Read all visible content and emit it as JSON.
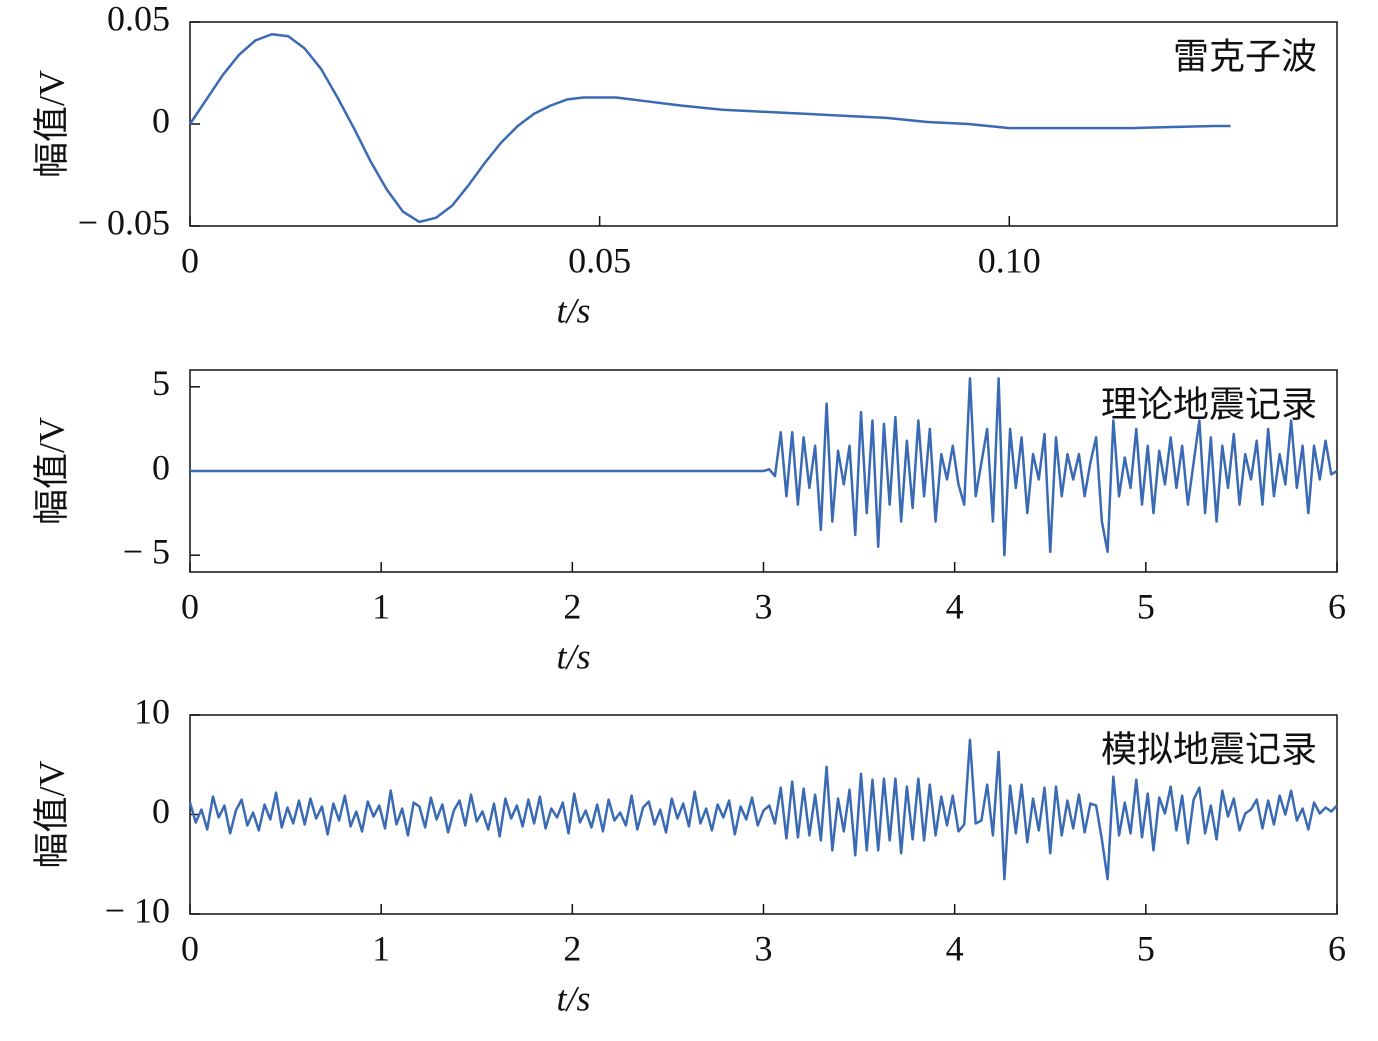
{
  "chart_data": [
    {
      "type": "line",
      "annotation": "雷克子波",
      "xlabel": "t/s",
      "ylabel": "幅值/V",
      "xlim": [
        0,
        0.14
      ],
      "ylim": [
        -0.05,
        0.05
      ],
      "xticks": [
        0,
        0.05,
        {
          "value": 0.1,
          "label": "0.10"
        }
      ],
      "yticks": [
        {
          "value": -0.05,
          "label": "− 0.05"
        },
        0,
        0.05
      ],
      "series": [
        {
          "color": "#3a6ab4",
          "x": [
            0,
            0.002,
            0.004,
            0.006,
            0.008,
            0.01,
            0.012,
            0.014,
            0.016,
            0.018,
            0.02,
            0.022,
            0.024,
            0.026,
            0.028,
            0.03,
            0.032,
            0.034,
            0.036,
            0.038,
            0.04,
            0.042,
            0.044,
            0.046,
            0.048,
            0.05,
            0.052,
            0.054,
            0.056,
            0.058,
            0.06,
            0.065,
            0.07,
            0.075,
            0.08,
            0.085,
            0.09,
            0.095,
            0.1,
            0.105,
            0.11,
            0.115,
            0.12,
            0.125,
            0.127
          ],
          "values": [
            0,
            0.012,
            0.024,
            0.034,
            0.041,
            0.044,
            0.043,
            0.037,
            0.027,
            0.013,
            -0.002,
            -0.018,
            -0.032,
            -0.043,
            -0.048,
            -0.046,
            -0.04,
            -0.03,
            -0.019,
            -0.009,
            -0.001,
            0.005,
            0.009,
            0.012,
            0.013,
            0.013,
            0.013,
            0.012,
            0.011,
            0.01,
            0.009,
            0.007,
            0.006,
            0.005,
            0.004,
            0.003,
            0.001,
            0,
            -0.002,
            -0.002,
            -0.002,
            -0.002,
            -0.0015,
            -0.001,
            -0.001
          ]
        }
      ]
    },
    {
      "type": "line",
      "annotation": "理论地震记录",
      "xlabel": "t/s",
      "ylabel": "幅值/V",
      "xlim": [
        0,
        6
      ],
      "ylim": [
        -6,
        6
      ],
      "xticks": [
        0,
        1,
        2,
        3,
        4,
        5,
        6
      ],
      "yticks": [
        {
          "value": -5,
          "label": "− 5"
        },
        0,
        5
      ],
      "series": [
        {
          "color": "#3a6ab4",
          "x": [
            0,
            3,
            3.03,
            3.06,
            3.09,
            3.12,
            3.15,
            3.18,
            3.21,
            3.24,
            3.27,
            3.3,
            3.33,
            3.36,
            3.39,
            3.42,
            3.45,
            3.48,
            3.51,
            3.54,
            3.57,
            3.6,
            3.63,
            3.66,
            3.69,
            3.72,
            3.75,
            3.78,
            3.81,
            3.84,
            3.87,
            3.9,
            3.93,
            3.96,
            3.99,
            4.02,
            4.05,
            4.08,
            4.11,
            4.14,
            4.17,
            4.2,
            4.23,
            4.26,
            4.29,
            4.32,
            4.35,
            4.38,
            4.41,
            4.44,
            4.47,
            4.5,
            4.53,
            4.56,
            4.59,
            4.62,
            4.65,
            4.68,
            4.71,
            4.74,
            4.77,
            4.8,
            4.83,
            4.86,
            4.89,
            4.92,
            4.95,
            4.98,
            5.01,
            5.04,
            5.07,
            5.1,
            5.13,
            5.16,
            5.19,
            5.22,
            5.25,
            5.28,
            5.31,
            5.34,
            5.37,
            5.4,
            5.43,
            5.46,
            5.49,
            5.52,
            5.55,
            5.58,
            5.61,
            5.64,
            5.67,
            5.7,
            5.73,
            5.76,
            5.79,
            5.82,
            5.85,
            5.88,
            5.91,
            5.94,
            5.97,
            6
          ],
          "values": [
            0,
            0,
            0.1,
            -0.3,
            2.3,
            -1.5,
            2.3,
            -2.0,
            2.0,
            -1.0,
            1.5,
            -3.5,
            4.0,
            -3.0,
            1.2,
            -0.8,
            1.5,
            -3.8,
            3.5,
            -2.5,
            3.0,
            -4.5,
            2.8,
            -2.0,
            3.2,
            -3.0,
            1.8,
            -2.2,
            3.0,
            -1.5,
            2.5,
            -3.0,
            1.0,
            -0.5,
            1.5,
            -0.8,
            -2.0,
            5.5,
            -1.5,
            0.5,
            2.5,
            -3.0,
            5.5,
            -5.0,
            2.5,
            -1.0,
            2.0,
            -2.5,
            1.0,
            -0.5,
            2.2,
            -4.8,
            2.0,
            -1.5,
            1.0,
            -0.5,
            1.0,
            -1.5,
            0.5,
            2.0,
            -3.0,
            -4.8,
            3.0,
            -1.5,
            0.8,
            -1.0,
            2.5,
            -2.0,
            1.5,
            -2.5,
            1.2,
            -0.8,
            2.0,
            -1.0,
            1.5,
            -2.0,
            0.5,
            3.0,
            -2.5,
            2.0,
            -3.0,
            1.5,
            -1.0,
            2.2,
            -2.0,
            1.0,
            -0.5,
            1.8,
            -2.0,
            2.5,
            -1.5,
            1.0,
            -0.8,
            3.0,
            -1.0,
            1.5,
            -2.5,
            1.5,
            -0.5,
            1.8,
            -0.2,
            0
          ]
        }
      ]
    },
    {
      "type": "line",
      "annotation": "模拟地震记录",
      "xlabel": "t/s",
      "ylabel": "幅值/V",
      "xlim": [
        0,
        6
      ],
      "ylim": [
        -10,
        10
      ],
      "xticks": [
        0,
        1,
        2,
        3,
        4,
        5,
        6
      ],
      "yticks": [
        {
          "value": -10,
          "label": "− 10"
        },
        0,
        10
      ],
      "series": [
        {
          "color": "#3a6ab4",
          "x": [
            0,
            0.03,
            0.06,
            0.09,
            0.12,
            0.15,
            0.18,
            0.21,
            0.24,
            0.27,
            0.3,
            0.33,
            0.36,
            0.39,
            0.42,
            0.45,
            0.48,
            0.51,
            0.54,
            0.57,
            0.6,
            0.63,
            0.66,
            0.69,
            0.72,
            0.75,
            0.78,
            0.81,
            0.84,
            0.87,
            0.9,
            0.93,
            0.96,
            0.99,
            1.02,
            1.05,
            1.08,
            1.11,
            1.14,
            1.17,
            1.2,
            1.23,
            1.26,
            1.29,
            1.32,
            1.35,
            1.38,
            1.41,
            1.44,
            1.47,
            1.5,
            1.53,
            1.56,
            1.59,
            1.62,
            1.65,
            1.68,
            1.71,
            1.74,
            1.77,
            1.8,
            1.83,
            1.86,
            1.89,
            1.92,
            1.95,
            1.98,
            2.01,
            2.04,
            2.07,
            2.1,
            2.13,
            2.16,
            2.19,
            2.22,
            2.25,
            2.28,
            2.31,
            2.34,
            2.37,
            2.4,
            2.43,
            2.46,
            2.49,
            2.52,
            2.55,
            2.58,
            2.61,
            2.64,
            2.67,
            2.7,
            2.73,
            2.76,
            2.79,
            2.82,
            2.85,
            2.88,
            2.91,
            2.94,
            2.97,
            3,
            3.03,
            3.06,
            3.09,
            3.12,
            3.15,
            3.18,
            3.21,
            3.24,
            3.27,
            3.3,
            3.33,
            3.36,
            3.39,
            3.42,
            3.45,
            3.48,
            3.51,
            3.54,
            3.57,
            3.6,
            3.63,
            3.66,
            3.69,
            3.72,
            3.75,
            3.78,
            3.81,
            3.84,
            3.87,
            3.9,
            3.93,
            3.96,
            3.99,
            4.02,
            4.05,
            4.08,
            4.11,
            4.14,
            4.17,
            4.2,
            4.23,
            4.26,
            4.29,
            4.32,
            4.35,
            4.38,
            4.41,
            4.44,
            4.47,
            4.5,
            4.53,
            4.56,
            4.59,
            4.62,
            4.65,
            4.68,
            4.71,
            4.74,
            4.77,
            4.8,
            4.83,
            4.86,
            4.89,
            4.92,
            4.95,
            4.98,
            5.01,
            5.04,
            5.07,
            5.1,
            5.13,
            5.16,
            5.19,
            5.22,
            5.25,
            5.28,
            5.31,
            5.34,
            5.37,
            5.4,
            5.43,
            5.46,
            5.49,
            5.52,
            5.55,
            5.58,
            5.61,
            5.64,
            5.67,
            5.7,
            5.73,
            5.76,
            5.79,
            5.82,
            5.85,
            5.88,
            5.91,
            5.94,
            5.97,
            6
          ],
          "values": [
            1.2,
            -0.8,
            0.5,
            -1.5,
            1.8,
            -0.3,
            0.9,
            -1.9,
            0.4,
            1.5,
            -1.1,
            0.2,
            -1.6,
            1.0,
            -0.5,
            2.2,
            -1.3,
            0.7,
            -0.9,
            1.4,
            -1.0,
            1.6,
            -0.4,
            0.8,
            -2.0,
            1.1,
            -0.6,
            1.9,
            -1.2,
            0.3,
            -1.7,
            1.3,
            -0.2,
            0.9,
            -1.4,
            2.4,
            -1.0,
            0.6,
            -2.1,
            1.2,
            0.8,
            -1.3,
            1.7,
            -0.5,
            1.0,
            -1.8,
            0.4,
            1.4,
            -1.1,
            2.0,
            -0.7,
            0.3,
            -1.5,
            1.1,
            -2.2,
            1.6,
            -0.4,
            0.9,
            -1.2,
            1.5,
            -0.9,
            1.8,
            -1.4,
            0.6,
            -0.3,
            1.2,
            -1.9,
            2.1,
            -0.8,
            0.4,
            -1.3,
            1.0,
            -1.7,
            1.5,
            -0.6,
            0.2,
            -1.1,
            1.9,
            -1.5,
            0.7,
            1.3,
            -1.0,
            0.5,
            -1.8,
            1.6,
            -0.4,
            1.1,
            -1.2,
            2.3,
            -0.9,
            0.6,
            -1.6,
            1.0,
            -0.3,
            1.4,
            -2.0,
            0.8,
            -0.5,
            1.7,
            -1.1,
            0.4,
            0.9,
            -0.9,
            2.7,
            -2.4,
            3.3,
            -2.3,
            2.6,
            -2.1,
            2.0,
            -2.6,
            4.8,
            -3.6,
            1.6,
            -1.7,
            2.5,
            -4.1,
            4.1,
            -3.6,
            3.5,
            -3.6,
            3.6,
            -2.6,
            3.6,
            -3.9,
            2.8,
            -2.5,
            3.6,
            -2.6,
            3.0,
            -2.1,
            1.8,
            -1.1,
            1.9,
            -1.7,
            -1.0,
            7.5,
            -0.9,
            -0.6,
            3.0,
            -2.1,
            6.3,
            -6.5,
            2.9,
            -1.9,
            3.0,
            -2.8,
            1.6,
            -1.6,
            2.7,
            -3.9,
            2.8,
            -2.1,
            1.4,
            -1.4,
            2.0,
            -1.8,
            1.1,
            0.9,
            -2.5,
            -6.5,
            3.8,
            -2.1,
            1.2,
            -1.9,
            3.5,
            -2.3,
            2.1,
            -3.6,
            1.7,
            0.1,
            2.8,
            -1.6,
            1.9,
            -2.9,
            1.5,
            2.7,
            -1.9,
            0.9,
            -2.5,
            2.4,
            -0.2,
            1.6,
            -1.6,
            0.1,
            0.5,
            1.5,
            -1.4,
            1.4,
            -1.0,
            1.9,
            0.0,
            2.4,
            -0.6,
            0.6,
            -1.5,
            1.2,
            0.1,
            0.7,
            0.3,
            0.9
          ]
        }
      ]
    }
  ]
}
